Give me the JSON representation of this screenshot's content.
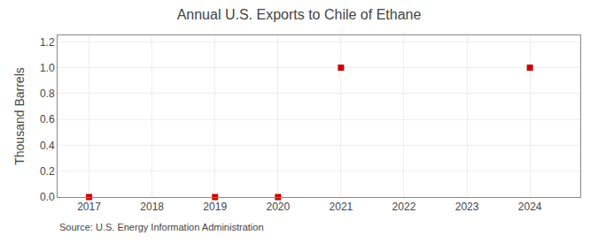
{
  "chart_data": {
    "type": "scatter",
    "title": "Annual U.S. Exports to Chile of Ethane",
    "ylabel": "Thousand Barrels",
    "annotations": [
      "Source: U.S. Energy Information Administration"
    ],
    "x": [
      2017,
      2019,
      2020,
      2021,
      2024
    ],
    "values": [
      0,
      0,
      0,
      1.0,
      1.0
    ],
    "color": "#CC0000",
    "marker": "square",
    "xlim": [
      2016.5,
      2024.8
    ],
    "ylim": [
      0,
      1.25
    ],
    "xticks": [
      2017,
      2018,
      2019,
      2020,
      2021,
      2022,
      2023,
      2024
    ],
    "yticks": [
      {
        "value": 0.0,
        "label": "0.0"
      },
      {
        "value": 0.2,
        "label": "0.2"
      },
      {
        "value": 0.4,
        "label": "0.4"
      },
      {
        "value": 0.6,
        "label": "0.6"
      },
      {
        "value": 0.8,
        "label": "0.8"
      },
      {
        "value": 1.0,
        "label": "1.0"
      },
      {
        "value": 1.2,
        "label": "1.2"
      }
    ],
    "grid": true
  }
}
